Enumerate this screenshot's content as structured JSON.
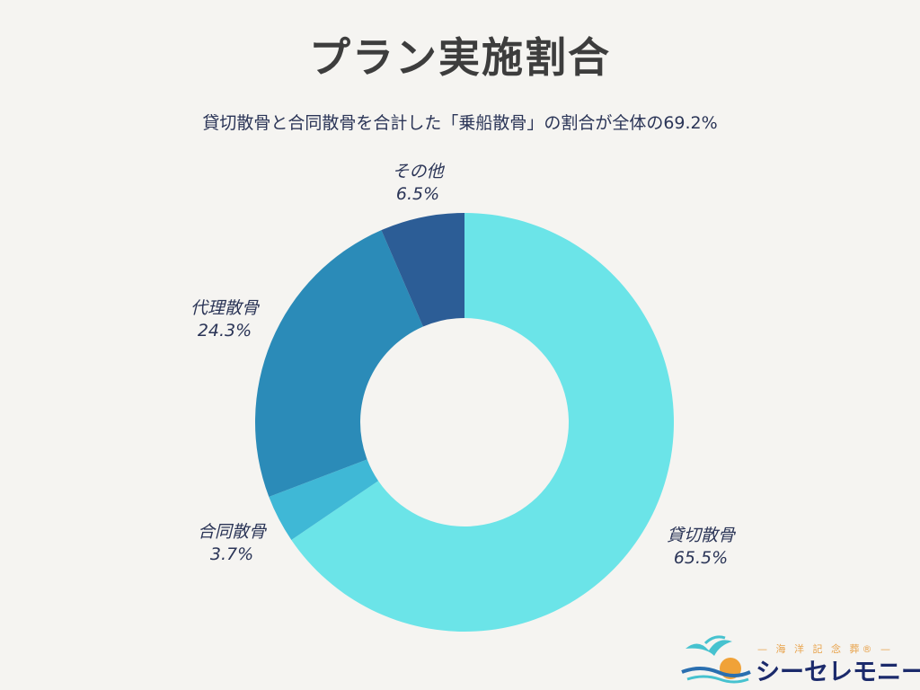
{
  "title": "プラン実施割合",
  "subtitle": "貸切散骨と合同散骨を合計した「乗船散骨」の割合が全体の69.2%",
  "chart_data": {
    "type": "pie",
    "donut": true,
    "slices": [
      {
        "label": "貸切散骨",
        "value": 65.5,
        "value_label": "65.5%",
        "color": "#6be4e8"
      },
      {
        "label": "合同散骨",
        "value": 3.7,
        "value_label": "3.7%",
        "color": "#3fb8d6"
      },
      {
        "label": "代理散骨",
        "value": 24.3,
        "value_label": "24.3%",
        "color": "#2b8bb8"
      },
      {
        "label": "その他",
        "value": 6.5,
        "value_label": "6.5%",
        "color": "#2c5d96"
      }
    ]
  },
  "brand": {
    "tagline": "— 海 洋 記 念 葬® —",
    "name": "シーセレモニー",
    "logo_icon": "seagull-sunset-logo"
  }
}
